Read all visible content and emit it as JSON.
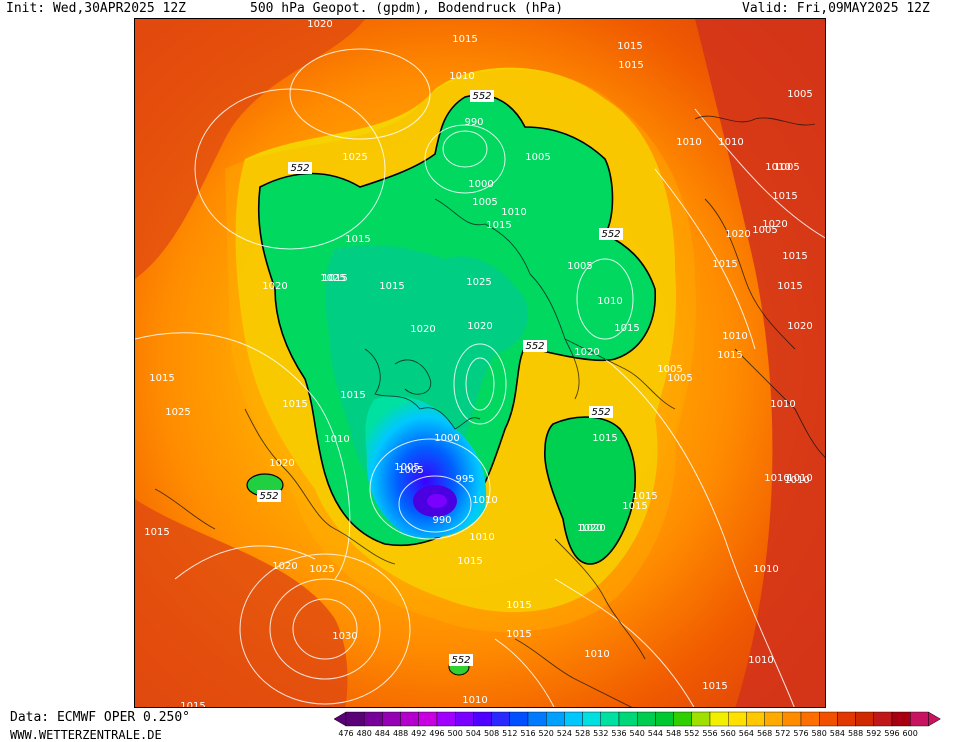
{
  "header": {
    "init": "Init: Wed,30APR2025 12Z",
    "title": "500 hPa Geopot. (gpdm), Bodendruck (hPa)",
    "valid": "Valid: Fri,09MAY2025 12Z"
  },
  "footer": {
    "source": "Data: ECMWF OPER 0.250°",
    "website": "WWW.WETTERZENTRALE.DE"
  },
  "map": {
    "pressure_labels": [
      "1020",
      "1015",
      "1015",
      "1010",
      "1005",
      "1025",
      "1015",
      "1010",
      "1010",
      "1005",
      "990",
      "1005",
      "1000",
      "1005",
      "1010",
      "1015",
      "1010",
      "1005",
      "1015",
      "1020",
      "1015",
      "1015",
      "1025",
      "1005",
      "1010",
      "1015",
      "1020",
      "1015",
      "1025",
      "1020",
      "1010",
      "1020",
      "1015",
      "1020",
      "1025",
      "1015",
      "1015",
      "1015",
      "1020",
      "1005",
      "1010",
      "1015",
      "1020",
      "1010",
      "1010",
      "1005",
      "1000",
      "1005",
      "1010",
      "1015",
      "1015",
      "995",
      "990",
      "1010",
      "1015",
      "1020",
      "1015",
      "1010",
      "1015",
      "1020",
      "1015",
      "1005",
      "1015",
      "1015",
      "1025",
      "1020",
      "1030",
      "1015",
      "1010",
      "1015",
      "1010",
      "1010",
      "1010",
      "1010",
      "1015",
      "1020"
    ],
    "geopotential_labels": [
      "552",
      "552",
      "552",
      "552",
      "552",
      "552",
      "552"
    ]
  },
  "colorbar": {
    "ticks": [
      "476",
      "480",
      "484",
      "488",
      "492",
      "496",
      "500",
      "504",
      "508",
      "512",
      "516",
      "520",
      "524",
      "528",
      "532",
      "536",
      "540",
      "544",
      "548",
      "552",
      "556",
      "560",
      "564",
      "568",
      "572",
      "576",
      "580",
      "584",
      "588",
      "592",
      "596",
      "600"
    ],
    "colors": [
      "#5a0078",
      "#78009a",
      "#9600b4",
      "#b400cc",
      "#c800e0",
      "#a000ff",
      "#7a00ff",
      "#5000ff",
      "#2a2aff",
      "#0050ff",
      "#007aff",
      "#00a0ff",
      "#00c8ff",
      "#00e0e0",
      "#00e0a0",
      "#00d878",
      "#00cc50",
      "#00c830",
      "#30d000",
      "#a0e000",
      "#f0f000",
      "#ffe000",
      "#ffc800",
      "#ffaa00",
      "#ff8c00",
      "#ff6e00",
      "#f05000",
      "#e03800",
      "#d02800",
      "#c01818",
      "#a80010",
      "#c81460"
    ]
  }
}
